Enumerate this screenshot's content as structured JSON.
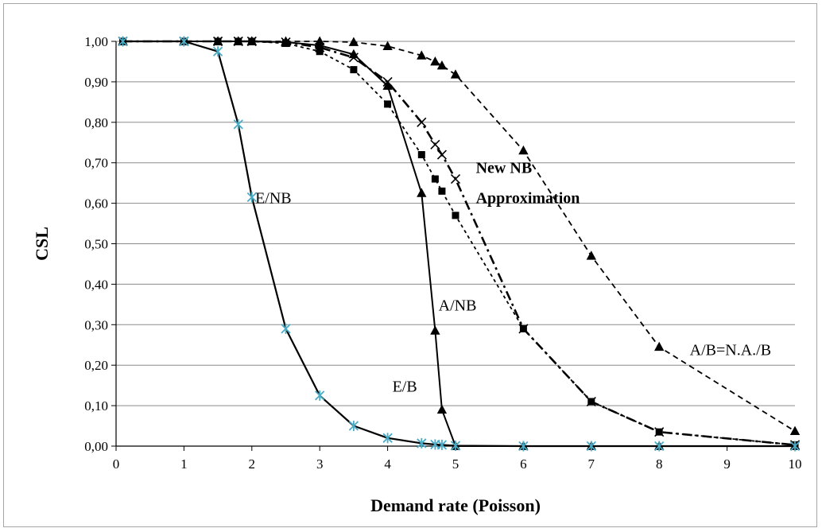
{
  "chart_data": {
    "type": "line",
    "xlabel": "Demand rate (Poisson)",
    "ylabel": "CSL",
    "xlim": [
      0,
      10
    ],
    "ylim": [
      0,
      1
    ],
    "x_ticks": [
      "0",
      "1",
      "2",
      "3",
      "4",
      "5",
      "6",
      "7",
      "8",
      "9",
      "10"
    ],
    "y_ticks": [
      "0,00",
      "0,10",
      "0,20",
      "0,30",
      "0,40",
      "0,50",
      "0,60",
      "0,70",
      "0,80",
      "0,90",
      "1,00"
    ],
    "grid": "horizontal",
    "legend": "none",
    "series": [
      {
        "key": "e-nb",
        "marker": "asterisk",
        "marker_color": "#4bacc6",
        "dash": "solid",
        "x": [
          0.1,
          1,
          1.5,
          1.8,
          2,
          2.5,
          3,
          3.5,
          4,
          4.5,
          4.7,
          4.8,
          5,
          6,
          7,
          8,
          10
        ],
        "y": [
          1.0,
          1.0,
          0.975,
          0.795,
          0.615,
          0.29,
          0.125,
          0.05,
          0.02,
          0.007,
          0.004,
          0.003,
          0.001,
          0.0,
          0.0,
          0.0,
          0.0
        ]
      },
      {
        "key": "a-nb",
        "marker": "triangle",
        "marker_color": "#000000",
        "dash": "solid",
        "x": [
          0.1,
          1,
          1.5,
          1.8,
          2,
          2.5,
          3,
          3.5,
          4,
          4.5,
          4.7,
          4.8,
          5,
          6,
          7,
          8,
          10
        ],
        "y": [
          1.0,
          1.0,
          1.0,
          1.0,
          1.0,
          0.998,
          0.99,
          0.968,
          0.89,
          0.625,
          0.285,
          0.09,
          0.0,
          0.0,
          0.0,
          0.0,
          0.0
        ]
      },
      {
        "key": "e-b",
        "marker": "square",
        "marker_color": "#000000",
        "dash": "short-dash",
        "x": [
          0.1,
          1,
          1.5,
          1.8,
          2,
          2.5,
          3,
          3.5,
          4,
          4.5,
          4.7,
          4.8,
          5,
          6,
          7,
          8,
          10
        ],
        "y": [
          1.0,
          1.0,
          1.0,
          1.0,
          1.0,
          0.995,
          0.975,
          0.93,
          0.845,
          0.72,
          0.66,
          0.63,
          0.57,
          0.29,
          0.11,
          0.035,
          0.003
        ]
      },
      {
        "key": "new-nb",
        "marker": "x",
        "marker_color": "#000000",
        "dash": "dash-dot",
        "x": [
          0.1,
          1,
          1.5,
          1.8,
          2,
          2.5,
          3,
          3.5,
          4,
          4.5,
          4.7,
          4.8,
          5,
          6,
          7,
          8,
          10
        ],
        "y": [
          1.0,
          1.0,
          1.0,
          1.0,
          1.0,
          0.998,
          0.985,
          0.96,
          0.9,
          0.8,
          0.745,
          0.72,
          0.66,
          0.29,
          0.11,
          0.035,
          0.003
        ]
      },
      {
        "key": "a-b",
        "marker": "triangle",
        "marker_color": "#000000",
        "dash": "dash",
        "x": [
          0.1,
          1,
          1.5,
          1.8,
          2,
          2.5,
          3,
          3.5,
          4,
          4.5,
          4.7,
          4.8,
          5,
          6,
          7,
          8,
          10
        ],
        "y": [
          1.0,
          1.0,
          1.0,
          1.0,
          1.0,
          1.0,
          1.0,
          0.998,
          0.988,
          0.965,
          0.95,
          0.94,
          0.918,
          0.73,
          0.47,
          0.245,
          0.037
        ]
      }
    ],
    "annotations": [
      {
        "key": "e-nb-label",
        "text": "E/NB",
        "x": 2.05,
        "y": 0.6
      },
      {
        "key": "a-nb-label",
        "text": "A/NB",
        "x": 4.75,
        "y": 0.335
      },
      {
        "key": "e-b-label",
        "text": "E/B",
        "x": 4.07,
        "y": 0.135
      },
      {
        "key": "new-nb-label-line1",
        "text": "New NB",
        "x": 5.3,
        "y": 0.675,
        "bold": true
      },
      {
        "key": "new-nb-label-line2",
        "text": "Approximation",
        "x": 5.3,
        "y": 0.6,
        "bold": true
      },
      {
        "key": "a-b-label",
        "text": "A/B=N.A./B",
        "x": 8.45,
        "y": 0.225
      }
    ]
  }
}
